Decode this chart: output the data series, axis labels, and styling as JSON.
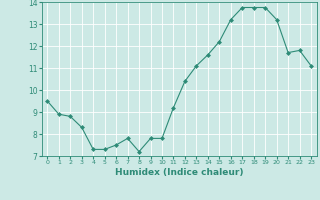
{
  "x": [
    0,
    1,
    2,
    3,
    4,
    5,
    6,
    7,
    8,
    9,
    10,
    11,
    12,
    13,
    14,
    15,
    16,
    17,
    18,
    19,
    20,
    21,
    22,
    23
  ],
  "y": [
    9.5,
    8.9,
    8.8,
    8.3,
    7.3,
    7.3,
    7.5,
    7.8,
    7.2,
    7.8,
    7.8,
    9.2,
    10.4,
    11.1,
    11.6,
    12.2,
    13.2,
    13.75,
    13.75,
    13.75,
    13.2,
    11.7,
    11.8,
    11.1
  ],
  "line_color": "#2e8b77",
  "marker": "D",
  "marker_size": 2.0,
  "bg_color": "#cce9e5",
  "grid_color": "#ffffff",
  "xlabel": "Humidex (Indice chaleur)",
  "xlim": [
    -0.5,
    23.5
  ],
  "ylim": [
    7,
    14
  ],
  "yticks": [
    7,
    8,
    9,
    10,
    11,
    12,
    13,
    14
  ],
  "xticks": [
    0,
    1,
    2,
    3,
    4,
    5,
    6,
    7,
    8,
    9,
    10,
    11,
    12,
    13,
    14,
    15,
    16,
    17,
    18,
    19,
    20,
    21,
    22,
    23
  ],
  "tick_color": "#2e8b77",
  "label_color": "#2e8b77"
}
